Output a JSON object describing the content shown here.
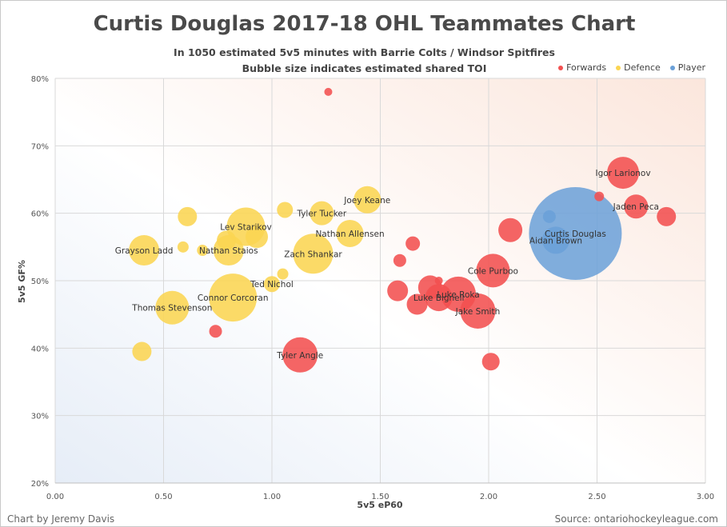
{
  "footer": {
    "credit": "Chart by Jeremy Davis",
    "source": "Source: ontariohockeyleague.com"
  },
  "colors": {
    "forwards": "#f25050",
    "defence": "#fbd552",
    "player": "#6aa0d8"
  },
  "chart_data": {
    "type": "scatter",
    "subtype": "bubble",
    "title": "Curtis Douglas 2017-18 OHL Teammates Chart",
    "subtitle": "In 1050 estimated 5v5 minutes with Barrie Colts / Windsor Spitfires",
    "subtitle2": "Bubble size indicates estimated shared TOI",
    "xlabel": "5v5 eP60",
    "ylabel": "5v5 GF%",
    "xlim": [
      0,
      3
    ],
    "ylim": [
      20,
      80
    ],
    "xticks": [
      "0.00",
      "0.50",
      "1.00",
      "1.50",
      "2.00",
      "2.50",
      "3.00"
    ],
    "yticks": [
      "20%",
      "30%",
      "40%",
      "50%",
      "60%",
      "70%",
      "80%"
    ],
    "legend_position": "top-right",
    "legend": [
      "Forwards",
      "Defence",
      "Player"
    ],
    "grid": true,
    "series": [
      {
        "name": "Forwards",
        "points": [
          {
            "x": 2.62,
            "y": 66.0,
            "r": 20,
            "label": "Igor Larionov"
          },
          {
            "x": 2.51,
            "y": 62.5,
            "r": 6,
            "label": ""
          },
          {
            "x": 2.68,
            "y": 61.0,
            "r": 15,
            "label": "Jaden Peca"
          },
          {
            "x": 2.82,
            "y": 59.5,
            "r": 12,
            "label": ""
          },
          {
            "x": 2.1,
            "y": 57.5,
            "r": 15,
            "label": ""
          },
          {
            "x": 1.65,
            "y": 55.5,
            "r": 9,
            "label": ""
          },
          {
            "x": 1.59,
            "y": 53.0,
            "r": 8,
            "label": ""
          },
          {
            "x": 2.02,
            "y": 51.5,
            "r": 21,
            "label": "Cole Purboo"
          },
          {
            "x": 1.73,
            "y": 49.0,
            "r": 15,
            "label": ""
          },
          {
            "x": 1.58,
            "y": 48.5,
            "r": 13,
            "label": ""
          },
          {
            "x": 1.67,
            "y": 46.5,
            "r": 13,
            "label": ""
          },
          {
            "x": 1.77,
            "y": 50.0,
            "r": 5,
            "label": ""
          },
          {
            "x": 1.77,
            "y": 47.5,
            "r": 17,
            "label": "Luke Bignell"
          },
          {
            "x": 1.86,
            "y": 48.0,
            "r": 22,
            "label": "Luke Roka"
          },
          {
            "x": 1.95,
            "y": 45.5,
            "r": 22,
            "label": "Jake Smith"
          },
          {
            "x": 2.01,
            "y": 38.0,
            "r": 11,
            "label": ""
          },
          {
            "x": 1.13,
            "y": 39.0,
            "r": 22,
            "label": "Tyler Angle"
          },
          {
            "x": 0.74,
            "y": 42.5,
            "r": 8,
            "label": ""
          },
          {
            "x": 1.26,
            "y": 78.0,
            "r": 5,
            "label": ""
          }
        ]
      },
      {
        "name": "Defence",
        "points": [
          {
            "x": 1.44,
            "y": 62.0,
            "r": 17,
            "label": "Joey Keane"
          },
          {
            "x": 1.06,
            "y": 60.5,
            "r": 10,
            "label": ""
          },
          {
            "x": 1.23,
            "y": 60.0,
            "r": 15,
            "label": "Tyler Tucker"
          },
          {
            "x": 0.61,
            "y": 59.5,
            "r": 12,
            "label": ""
          },
          {
            "x": 0.88,
            "y": 58.0,
            "r": 24,
            "label": "Lev Starikov"
          },
          {
            "x": 0.93,
            "y": 56.5,
            "r": 14,
            "label": ""
          },
          {
            "x": 1.36,
            "y": 57.0,
            "r": 17,
            "label": "Nathan Allensen"
          },
          {
            "x": 0.79,
            "y": 56.0,
            "r": 12,
            "label": ""
          },
          {
            "x": 0.41,
            "y": 54.5,
            "r": 19,
            "label": "Grayson Ladd"
          },
          {
            "x": 0.59,
            "y": 55.0,
            "r": 7,
            "label": ""
          },
          {
            "x": 0.68,
            "y": 54.5,
            "r": 7,
            "label": ""
          },
          {
            "x": 0.8,
            "y": 54.5,
            "r": 19,
            "label": "Nathan Staios"
          },
          {
            "x": 1.19,
            "y": 54.0,
            "r": 25,
            "label": "Zach Shankar"
          },
          {
            "x": 1.05,
            "y": 51.0,
            "r": 7,
            "label": ""
          },
          {
            "x": 1.0,
            "y": 49.5,
            "r": 10,
            "label": "Ted Nichol"
          },
          {
            "x": 0.82,
            "y": 47.5,
            "r": 30,
            "label": "Connor Corcoran"
          },
          {
            "x": 0.54,
            "y": 46.0,
            "r": 21,
            "label": "Thomas Stevenson"
          },
          {
            "x": 0.4,
            "y": 39.5,
            "r": 12,
            "label": ""
          }
        ]
      },
      {
        "name": "Player",
        "points": [
          {
            "x": 2.4,
            "y": 57.0,
            "r": 58,
            "label": "Curtis Douglas"
          },
          {
            "x": 2.31,
            "y": 56.0,
            "r": 17,
            "label": "Aidan Brown"
          },
          {
            "x": 2.28,
            "y": 59.5,
            "r": 8,
            "label": ""
          }
        ]
      }
    ]
  }
}
